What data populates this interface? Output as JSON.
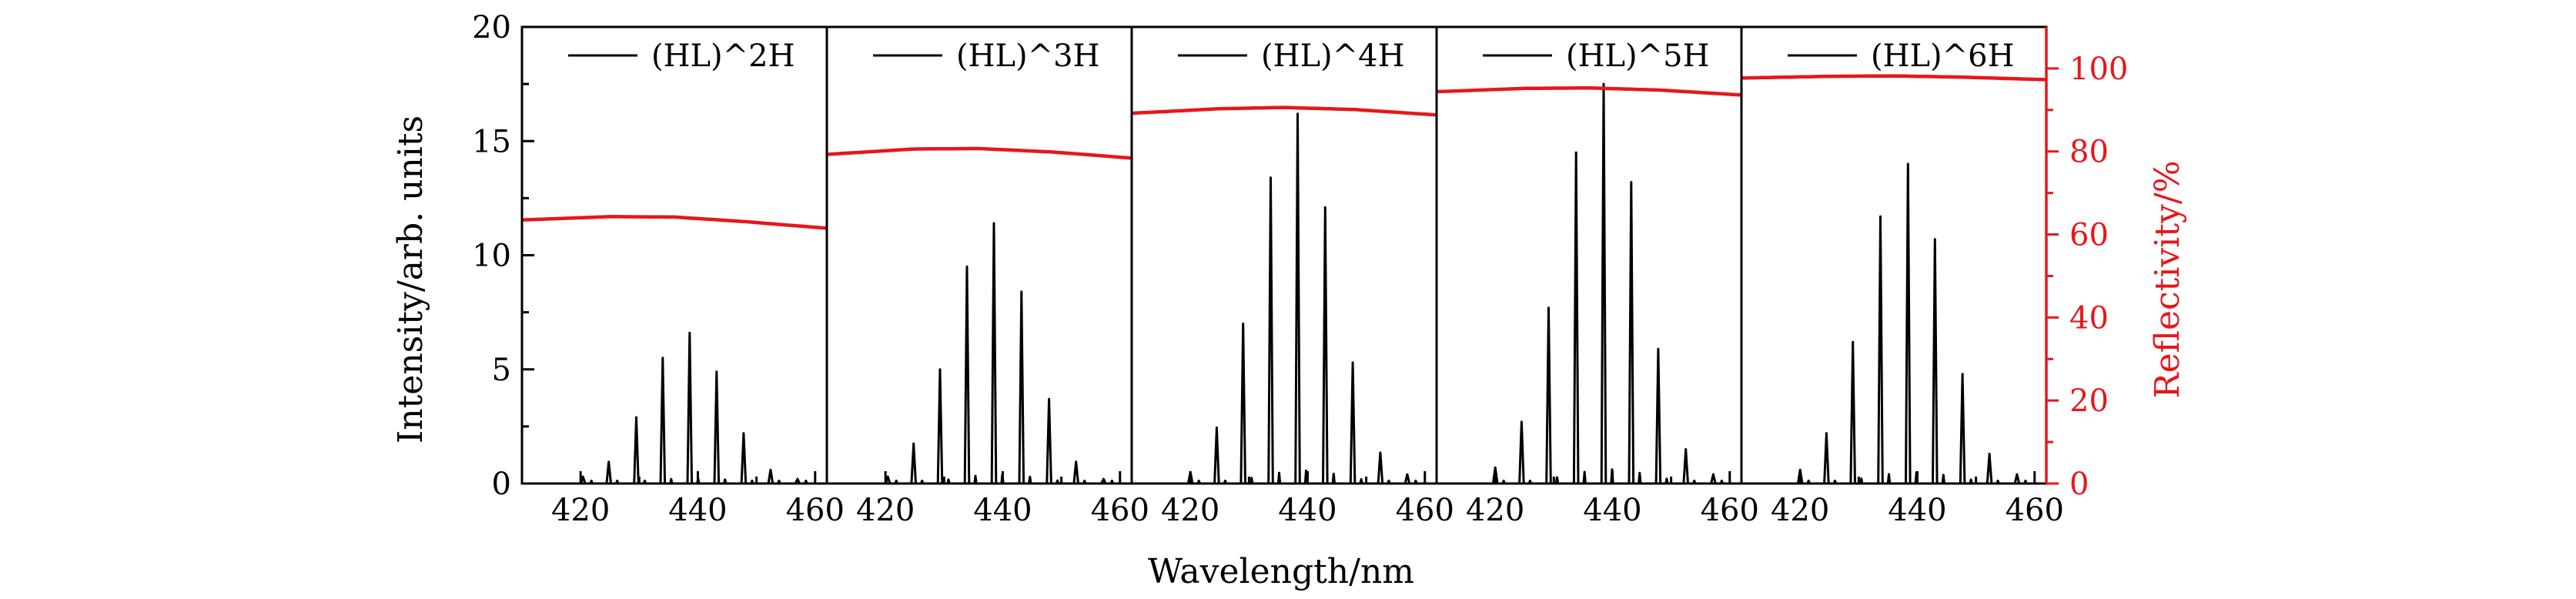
{
  "chart_data": {
    "type": "line",
    "xlabel": "Wavelength/nm",
    "ylabel_left": "Intensity/arb. units",
    "ylabel_right": "Reflectivity/%",
    "xlim": [
      410,
      462
    ],
    "ylim_left": [
      0,
      20
    ],
    "ylim_right": [
      0,
      110
    ],
    "x_ticks": [
      420,
      440,
      460
    ],
    "y_ticks_left": [
      0,
      5,
      10,
      15,
      20
    ],
    "y_ticks_right": [
      0,
      20,
      40,
      60,
      80,
      100
    ],
    "colors": {
      "spectrum": "#000000",
      "reflectivity": "#e8161b"
    },
    "panels": [
      {
        "legend": "(HL)^2H",
        "reflectivity": {
          "x": [
            410,
            425,
            436,
            448,
            462
          ],
          "y": [
            63.5,
            64.3,
            64.2,
            63.1,
            61.5
          ]
        },
        "peaks": [
          {
            "x": 420.4,
            "y": 0.3
          },
          {
            "x": 424.8,
            "y": 0.95
          },
          {
            "x": 429.5,
            "y": 2.9
          },
          {
            "x": 434.0,
            "y": 5.5
          },
          {
            "x": 438.6,
            "y": 6.6
          },
          {
            "x": 443.2,
            "y": 4.9
          },
          {
            "x": 447.8,
            "y": 2.2
          },
          {
            "x": 452.4,
            "y": 0.6
          },
          {
            "x": 457.0,
            "y": 0.2
          }
        ]
      },
      {
        "legend": "(HL)^3H",
        "reflectivity": {
          "x": [
            410,
            425,
            436,
            448,
            462
          ],
          "y": [
            79.3,
            80.6,
            80.7,
            79.9,
            78.4
          ]
        },
        "peaks": [
          {
            "x": 420.4,
            "y": 0.3
          },
          {
            "x": 424.8,
            "y": 1.75
          },
          {
            "x": 429.3,
            "y": 5.0
          },
          {
            "x": 433.9,
            "y": 9.5
          },
          {
            "x": 438.5,
            "y": 11.4
          },
          {
            "x": 443.2,
            "y": 8.4
          },
          {
            "x": 447.9,
            "y": 3.7
          },
          {
            "x": 452.5,
            "y": 0.95
          },
          {
            "x": 457.2,
            "y": 0.2
          }
        ]
      },
      {
        "legend": "(HL)^4H",
        "reflectivity": {
          "x": [
            410,
            425,
            436,
            448,
            462
          ],
          "y": [
            89.2,
            90.3,
            90.6,
            90.1,
            88.8
          ]
        },
        "peaks": [
          {
            "x": 420.0,
            "y": 0.5
          },
          {
            "x": 424.5,
            "y": 2.45
          },
          {
            "x": 429.0,
            "y": 7.0
          },
          {
            "x": 433.7,
            "y": 13.4
          },
          {
            "x": 438.3,
            "y": 16.2
          },
          {
            "x": 443.0,
            "y": 12.1
          },
          {
            "x": 447.7,
            "y": 5.3
          },
          {
            "x": 452.4,
            "y": 1.35
          },
          {
            "x": 457.0,
            "y": 0.4
          }
        ]
      },
      {
        "legend": "(HL)^5H",
        "reflectivity": {
          "x": [
            410,
            425,
            436,
            448,
            462
          ],
          "y": [
            94.4,
            95.2,
            95.3,
            94.8,
            93.6
          ]
        },
        "peaks": [
          {
            "x": 420.0,
            "y": 0.7
          },
          {
            "x": 424.5,
            "y": 2.7
          },
          {
            "x": 429.1,
            "y": 7.7
          },
          {
            "x": 433.8,
            "y": 14.5
          },
          {
            "x": 438.5,
            "y": 17.5
          },
          {
            "x": 443.2,
            "y": 13.2
          },
          {
            "x": 447.8,
            "y": 5.9
          },
          {
            "x": 452.5,
            "y": 1.5
          },
          {
            "x": 457.2,
            "y": 0.4
          }
        ]
      },
      {
        "legend": "(HL)^6H",
        "reflectivity": {
          "x": [
            410,
            425,
            436,
            448,
            462
          ],
          "y": [
            97.7,
            98.1,
            98.2,
            97.9,
            97.3
          ]
        },
        "peaks": [
          {
            "x": 420.0,
            "y": 0.6
          },
          {
            "x": 424.5,
            "y": 2.2
          },
          {
            "x": 429.0,
            "y": 6.2
          },
          {
            "x": 433.7,
            "y": 11.7
          },
          {
            "x": 438.4,
            "y": 14.0
          },
          {
            "x": 443.0,
            "y": 10.7
          },
          {
            "x": 447.7,
            "y": 4.8
          },
          {
            "x": 452.3,
            "y": 1.3
          },
          {
            "x": 457.0,
            "y": 0.4
          }
        ]
      }
    ]
  }
}
